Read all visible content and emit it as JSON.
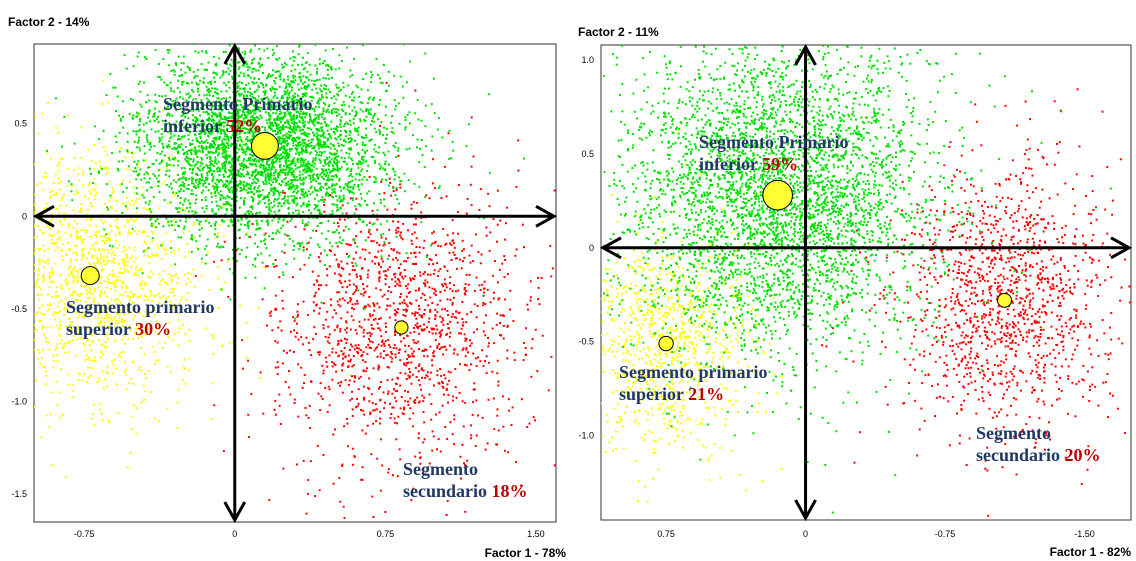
{
  "chart_data": [
    {
      "type": "scatter",
      "factor2_label": "Factor 2 - 14%",
      "factor1_label": "Factor 1 - 78%",
      "x_axis_reversed": false,
      "xlim": [
        -1.0,
        1.6
      ],
      "ylim": [
        -1.65,
        0.93
      ],
      "x_ticks": [
        -0.75,
        0,
        0.75,
        1.5
      ],
      "x_tick_labels": [
        "-0.75",
        "0",
        "0.75",
        "1.50"
      ],
      "y_ticks": [
        0.5,
        0,
        -0.5,
        -1.0,
        -1.5
      ],
      "y_tick_labels": [
        "0.5",
        "0",
        "-0.5",
        "-1.0",
        "-1.5"
      ],
      "colors": {
        "primario_inferior": "#00e000",
        "primario_superior": "#ffff00",
        "secundario": "#ff0000",
        "centroid": "#ffff33"
      },
      "segments": [
        {
          "key": "primario_inferior",
          "name_lines": [
            "Segmento Primario",
            "inferior"
          ],
          "pct": "52%",
          "centroid": [
            0.15,
            0.38
          ],
          "size": 0.52
        },
        {
          "key": "primario_superior",
          "name_lines": [
            "Segmento primario",
            "superior"
          ],
          "pct": "30%",
          "centroid": [
            -0.72,
            -0.32
          ],
          "size": 0.3
        },
        {
          "key": "secundario",
          "name_lines": [
            "Segmento",
            "secundario"
          ],
          "pct": "18%",
          "centroid": [
            0.83,
            -0.6
          ],
          "size": 0.18
        }
      ]
    },
    {
      "type": "scatter",
      "factor2_label": "Factor 2 - 11%",
      "factor1_label": "Factor 1 - 82%",
      "x_axis_reversed": true,
      "xlim": [
        1.1,
        -1.75
      ],
      "ylim": [
        -1.45,
        1.08
      ],
      "x_ticks": [
        0.75,
        0,
        -0.75,
        -1.5
      ],
      "x_tick_labels": [
        "0.75",
        "0",
        "-0.75",
        "-1.50"
      ],
      "y_ticks": [
        1.0,
        0.5,
        0,
        -0.5,
        -1.0
      ],
      "y_tick_labels": [
        "1.0",
        "0.5",
        "0",
        "-0.5",
        "-1.0"
      ],
      "colors": {
        "primario_inferior": "#00e000",
        "primario_superior": "#ffff00",
        "secundario": "#ff0000",
        "centroid": "#ffff33"
      },
      "segments": [
        {
          "key": "primario_inferior",
          "name_lines": [
            "Segmento Primario",
            "inferior"
          ],
          "pct": "59%",
          "centroid": [
            0.15,
            0.28
          ],
          "size": 0.59
        },
        {
          "key": "primario_superior",
          "name_lines": [
            "Segmento primario",
            "superior"
          ],
          "pct": "21%",
          "centroid": [
            0.75,
            -0.51
          ],
          "size": 0.21
        },
        {
          "key": "secundario",
          "name_lines": [
            "Segmento",
            "secundario"
          ],
          "pct": "20%",
          "centroid": [
            -1.07,
            -0.28
          ],
          "size": 0.2
        }
      ]
    }
  ]
}
